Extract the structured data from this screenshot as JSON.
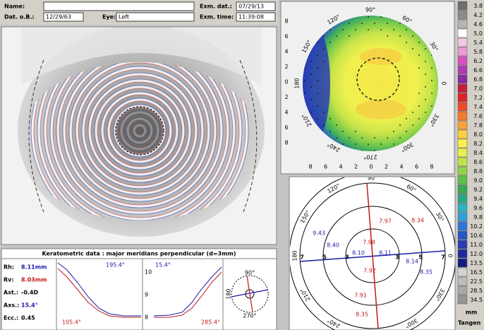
{
  "header": {
    "fields": [
      {
        "label": "Name:"
      },
      {
        "label": "Dat. o.B.:",
        "value": "12/29/63"
      },
      {
        "label": "Eye:",
        "value": "Left"
      },
      {
        "label": "Exm. dat.:",
        "value": "07/29/13"
      },
      {
        "label": "Exm. time:",
        "value": "11:39:08"
      }
    ]
  },
  "keratometry": {
    "title": "Keratometric data : major meridians perpendicular (d=3mm)",
    "rows": [
      {
        "label": "Rh:",
        "value": "8.11mm",
        "color": "#1a1aa8"
      },
      {
        "label": "Rv:",
        "value": "8.03mm",
        "color": "#c01818"
      },
      {
        "label": "Ast.:",
        "value": "-0.4D",
        "color": "#000000"
      },
      {
        "label": "Axs.:",
        "value": "15.4°",
        "color": "#1a1aa8"
      },
      {
        "label": "Ecc.:",
        "value": "0.45",
        "color": "#000000"
      }
    ],
    "graph_labels": [
      {
        "text": "195.4°",
        "color": "#1a1aa8"
      },
      {
        "text": "15.4°",
        "color": "#1a1aa8"
      },
      {
        "text": "105.4°",
        "color": "#c01818"
      },
      {
        "text": "285.4°",
        "color": "#c01818"
      }
    ],
    "graph_axis": [
      "10",
      "9",
      "8"
    ],
    "mini_labels": [
      "90°",
      "180",
      "270°"
    ]
  },
  "topography": {
    "y_axis": [
      "8",
      "6",
      "4",
      "2",
      "0",
      "2",
      "4",
      "6",
      "8"
    ],
    "x_axis": [
      "8",
      "6",
      "4",
      "2",
      "0",
      "2",
      "4",
      "6",
      "8"
    ],
    "angles": [
      "90°",
      "60°",
      "30°",
      "0",
      "330°",
      "300°",
      "270°",
      "240°",
      "210°",
      "180",
      "150°",
      "120°"
    ]
  },
  "color_scale": {
    "steps": [
      {
        "label": "3.8",
        "color": "#6e6e6e"
      },
      {
        "label": "4.2",
        "color": "#8c8c8c"
      },
      {
        "label": "4.6",
        "color": "#b4b4b4"
      },
      {
        "label": "5.0",
        "color": "#ffffff"
      },
      {
        "label": "5.4",
        "color": "#f3c6e6"
      },
      {
        "label": "5.8",
        "color": "#ea9ad6"
      },
      {
        "label": "6.2",
        "color": "#d84fc0"
      },
      {
        "label": "6.6",
        "color": "#b03ab4"
      },
      {
        "label": "6.8",
        "color": "#8a2aa0"
      },
      {
        "label": "7.0",
        "color": "#c0203c"
      },
      {
        "label": "7.2",
        "color": "#e0202a"
      },
      {
        "label": "7.4",
        "color": "#f04a2a"
      },
      {
        "label": "7.6",
        "color": "#f47a2c"
      },
      {
        "label": "7.8",
        "color": "#f8a23a"
      },
      {
        "label": "8.0",
        "color": "#fcd040"
      },
      {
        "label": "8.2",
        "color": "#fcf04a"
      },
      {
        "label": "8.4",
        "color": "#e6f050"
      },
      {
        "label": "8.6",
        "color": "#c2e44a"
      },
      {
        "label": "8.8",
        "color": "#8ed24a"
      },
      {
        "label": "9.0",
        "color": "#5ec04a"
      },
      {
        "label": "9.2",
        "color": "#38aa50"
      },
      {
        "label": "9.4",
        "color": "#2aa88a"
      },
      {
        "label": "9.6",
        "color": "#2ab4c0"
      },
      {
        "label": "9.8",
        "color": "#30a0dc"
      },
      {
        "label": "10.2",
        "color": "#2c78d8"
      },
      {
        "label": "10.6",
        "color": "#2856c8"
      },
      {
        "label": "11.0",
        "color": "#2a3cb4"
      },
      {
        "label": "12.0",
        "color": "#1e2a9c"
      },
      {
        "label": "13.5",
        "color": "#141e80"
      },
      {
        "label": "16.5",
        "color": "#d2d2d2"
      },
      {
        "label": "22.5",
        "color": "#bcbcbc"
      },
      {
        "label": "28.5",
        "color": "#a8a8a8"
      },
      {
        "label": "34.5",
        "color": "#969696"
      }
    ],
    "unit": "mm",
    "mode": "Tangen"
  },
  "meridians": {
    "angles": [
      "90°",
      "60°",
      "30°",
      "0",
      "330°",
      "300°",
      "240°",
      "210°",
      "180",
      "150°",
      "120°"
    ],
    "ring_labels": [
      "7",
      "5",
      "3",
      "3",
      "5",
      "7"
    ],
    "values": [
      {
        "text": "9.43",
        "color": "#1a1aa8"
      },
      {
        "text": "8.40",
        "color": "#1a1aa8"
      },
      {
        "text": "8.10",
        "color": "#1a1aa8"
      },
      {
        "text": "7.97",
        "color": "#c01818"
      },
      {
        "text": "8.34",
        "color": "#c01818"
      },
      {
        "text": "8.11",
        "color": "#1a1aa8"
      },
      {
        "text": "8.14",
        "color": "#1a1aa8"
      },
      {
        "text": "8.35",
        "color": "#1a1aa8"
      },
      {
        "text": "7.98",
        "color": "#c01818"
      },
      {
        "text": "7.92",
        "color": "#c01818"
      },
      {
        "text": "7.91",
        "color": "#c01818"
      },
      {
        "text": "8.35",
        "color": "#c01818"
      }
    ]
  }
}
